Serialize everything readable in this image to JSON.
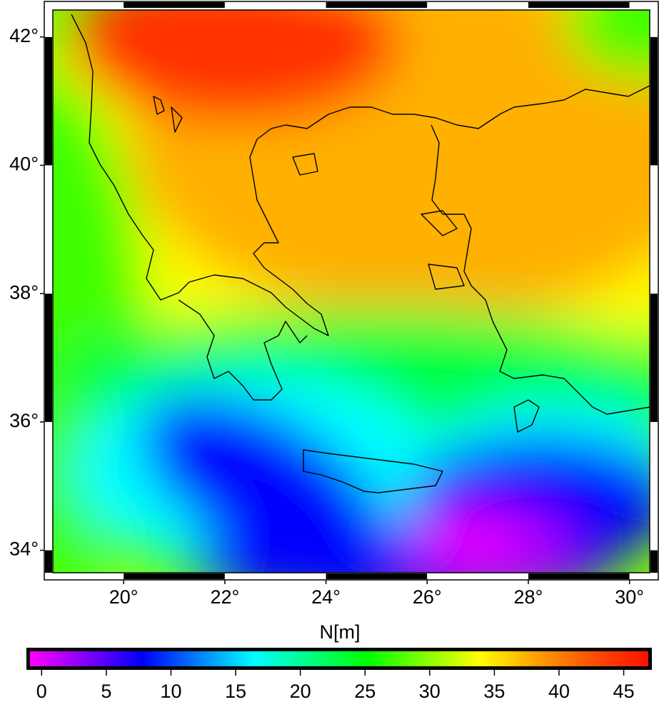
{
  "map": {
    "xlim": [
      18.6,
      30.4
    ],
    "ylim": [
      33.65,
      42.42
    ],
    "xticks": [
      {
        "value": 20,
        "label": "20°"
      },
      {
        "value": 22,
        "label": "22°"
      },
      {
        "value": 24,
        "label": "24°"
      },
      {
        "value": 26,
        "label": "26°"
      },
      {
        "value": 28,
        "label": "28°"
      },
      {
        "value": 30,
        "label": "30°"
      }
    ],
    "yticks": [
      {
        "value": 34,
        "label": "34°"
      },
      {
        "value": 36,
        "label": "36°"
      },
      {
        "value": 38,
        "label": "38°"
      },
      {
        "value": 40,
        "label": "40°"
      },
      {
        "value": 42,
        "label": "42°"
      }
    ],
    "colorbar": {
      "label": "N[m]",
      "lim": [
        -0.9,
        46.9
      ],
      "ticks": [
        0,
        5,
        10,
        15,
        20,
        25,
        30,
        35,
        40,
        45
      ],
      "colors": [
        "#ff00ff",
        "#8000ff",
        "#0000ff",
        "#0080ff",
        "#00ffff",
        "#00ff80",
        "#00ff00",
        "#80ff00",
        "#ffff00",
        "#ffa000",
        "#ff5000",
        "#ff1000"
      ]
    }
  }
}
